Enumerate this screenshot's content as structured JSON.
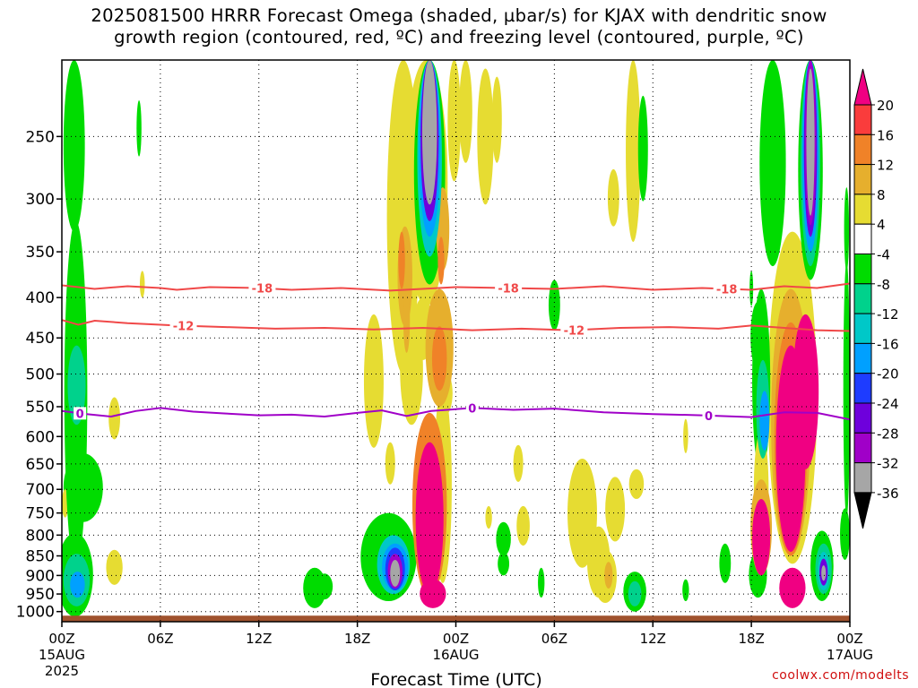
{
  "header": {
    "title_line1": "2025081500 HRRR Forecast Omega (shaded, µbar/s) for KJAX with dendritic snow",
    "title_line2": "growth region (contoured, red, ºC) and freezing level (contoured, purple, ºC)"
  },
  "credit": "coolwx.com/modelts",
  "chart_data": {
    "type": "heatmap",
    "title": "2025081500 HRRR Forecast Omega (shaded, µbar/s) for KJAX with dendritic snow growth region (contoured, red, ºC) and freezing level (contoured, purple, ºC)",
    "xlabel": "Forecast Time (UTC)",
    "ylabel": "",
    "x_range_hours": [
      0,
      48
    ],
    "y_range_hpa": [
      1030,
      200
    ],
    "y_scale": "log",
    "grid": true,
    "x_ticks": [
      {
        "h": 0,
        "label": "00Z",
        "sub1": "15AUG",
        "sub2": "2025"
      },
      {
        "h": 6,
        "label": "06Z",
        "sub1": "",
        "sub2": ""
      },
      {
        "h": 12,
        "label": "12Z",
        "sub1": "",
        "sub2": ""
      },
      {
        "h": 18,
        "label": "18Z",
        "sub1": "",
        "sub2": ""
      },
      {
        "h": 24,
        "label": "00Z",
        "sub1": "16AUG",
        "sub2": ""
      },
      {
        "h": 30,
        "label": "06Z",
        "sub1": "",
        "sub2": ""
      },
      {
        "h": 36,
        "label": "12Z",
        "sub1": "",
        "sub2": ""
      },
      {
        "h": 42,
        "label": "18Z",
        "sub1": "",
        "sub2": ""
      },
      {
        "h": 48,
        "label": "00Z",
        "sub1": "17AUG",
        "sub2": ""
      }
    ],
    "y_ticks": [
      250,
      300,
      350,
      400,
      450,
      500,
      550,
      600,
      650,
      700,
      750,
      800,
      850,
      900,
      950,
      1000
    ],
    "colorbar": {
      "levels": [
        -36,
        -32,
        -28,
        -24,
        -20,
        -16,
        -12,
        -8,
        -4,
        4,
        8,
        12,
        16,
        20
      ],
      "labels": [
        "20",
        "16",
        "12",
        "8",
        "4",
        "-4",
        "-8",
        "-12",
        "-16",
        "-20",
        "-24",
        "-28",
        "-32",
        "-36"
      ],
      "colors": [
        "#000000",
        "#a6a6a6",
        "#a000c8",
        "#6e00dc",
        "#1e3cff",
        "#00a0ff",
        "#00c8c8",
        "#00d28c",
        "#00dc00",
        "#ffffff",
        "#e6dc32",
        "#e6af2d",
        "#f08228",
        "#fa3c3c",
        "#f00082"
      ]
    },
    "contours": [
      {
        "label": "-18",
        "color": "#f04848",
        "label_hours": [
          12.2,
          27.2,
          40.5
        ],
        "points": [
          [
            0,
            386
          ],
          [
            1,
            388
          ],
          [
            2,
            390
          ],
          [
            4,
            387
          ],
          [
            6,
            389
          ],
          [
            7,
            391
          ],
          [
            9,
            388
          ],
          [
            12,
            389
          ],
          [
            14,
            391
          ],
          [
            17,
            389
          ],
          [
            20,
            392
          ],
          [
            24,
            388
          ],
          [
            27,
            389
          ],
          [
            30,
            390
          ],
          [
            33,
            387
          ],
          [
            36,
            391
          ],
          [
            39,
            389
          ],
          [
            42,
            391
          ],
          [
            44,
            387
          ],
          [
            46,
            389
          ],
          [
            48,
            384
          ]
        ]
      },
      {
        "label": "-12",
        "color": "#f04848",
        "label_hours": [
          7.4,
          31.2
        ],
        "points": [
          [
            0,
            427
          ],
          [
            1,
            433
          ],
          [
            2,
            428
          ],
          [
            4,
            431
          ],
          [
            7,
            434
          ],
          [
            10,
            436
          ],
          [
            13,
            438
          ],
          [
            16,
            437
          ],
          [
            19,
            439
          ],
          [
            22,
            437
          ],
          [
            25,
            440
          ],
          [
            28,
            438
          ],
          [
            31,
            440
          ],
          [
            34,
            437
          ],
          [
            37,
            436
          ],
          [
            40,
            438
          ],
          [
            42,
            434
          ],
          [
            44,
            437
          ],
          [
            46,
            440
          ],
          [
            48,
            441
          ]
        ]
      },
      {
        "label": "0",
        "color": "#a000c8",
        "label_hours": [
          1.1,
          25.0,
          39.4
        ],
        "points": [
          [
            0,
            557
          ],
          [
            1.5,
            562
          ],
          [
            3,
            566
          ],
          [
            4.5,
            557
          ],
          [
            6,
            552
          ],
          [
            8,
            558
          ],
          [
            10,
            561
          ],
          [
            12,
            564
          ],
          [
            14,
            563
          ],
          [
            16,
            566
          ],
          [
            18,
            560
          ],
          [
            19.5,
            556
          ],
          [
            21,
            565
          ],
          [
            22.5,
            557
          ],
          [
            25,
            552
          ],
          [
            27.5,
            555
          ],
          [
            30,
            553
          ],
          [
            33,
            559
          ],
          [
            36,
            562
          ],
          [
            39,
            564
          ],
          [
            42,
            567
          ],
          [
            44,
            559
          ],
          [
            46,
            560
          ],
          [
            48,
            571
          ]
        ]
      }
    ],
    "ground_bar": {
      "from_hpa": 1030,
      "to_hpa": 1012,
      "color": "#a0522d"
    },
    "omega_cells": [
      {
        "t": 0.85,
        "p": 600,
        "rt": 0.7,
        "rp": 280,
        "v": -6
      },
      {
        "t": 0.75,
        "p": 260,
        "rt": 0.65,
        "rp": 70,
        "v": -5
      },
      {
        "t": 1.0,
        "p": 640,
        "rt": 1.05,
        "rp": 130,
        "v": -4
      },
      {
        "t": 1.3,
        "p": 700,
        "rt": 1.2,
        "rp": 70,
        "v": -5
      },
      {
        "t": 0.9,
        "p": 520,
        "rt": 0.55,
        "rp": 60,
        "v": -11
      },
      {
        "t": 0.8,
        "p": 905,
        "rt": 1.1,
        "rp": 110,
        "v": -5
      },
      {
        "t": 0.9,
        "p": 915,
        "rt": 0.8,
        "rp": 70,
        "v": -10
      },
      {
        "t": 0.95,
        "p": 925,
        "rt": 0.45,
        "rp": 35,
        "v": -17
      },
      {
        "t": 0.2,
        "p": 730,
        "rt": 0.2,
        "rp": 30,
        "v": 5
      },
      {
        "t": 3.2,
        "p": 570,
        "rt": 0.35,
        "rp": 35,
        "v": 5
      },
      {
        "t": 3.2,
        "p": 880,
        "rt": 0.5,
        "rp": 45,
        "v": 5
      },
      {
        "t": 4.7,
        "p": 245,
        "rt": 0.15,
        "rp": 20,
        "v": -6
      },
      {
        "t": 4.9,
        "p": 385,
        "rt": 0.15,
        "rp": 15,
        "v": 5
      },
      {
        "t": 15.4,
        "p": 935,
        "rt": 0.7,
        "rp": 55,
        "v": -5
      },
      {
        "t": 16.0,
        "p": 930,
        "rt": 0.5,
        "rp": 35,
        "v": -8
      },
      {
        "t": 19.9,
        "p": 860,
        "rt": 1.7,
        "rp": 110,
        "v": -5
      },
      {
        "t": 20.1,
        "p": 870,
        "rt": 1.3,
        "rp": 90,
        "v": -8
      },
      {
        "t": 20.2,
        "p": 875,
        "rt": 1.0,
        "rp": 75,
        "v": -13
      },
      {
        "t": 20.3,
        "p": 880,
        "rt": 0.8,
        "rp": 60,
        "v": -18
      },
      {
        "t": 20.3,
        "p": 885,
        "rt": 0.6,
        "rp": 55,
        "v": -22
      },
      {
        "t": 20.3,
        "p": 890,
        "rt": 0.45,
        "rp": 45,
        "v": -29
      },
      {
        "t": 20.3,
        "p": 895,
        "rt": 0.3,
        "rp": 35,
        "v": -36
      },
      {
        "t": 19.0,
        "p": 520,
        "rt": 0.6,
        "rp": 100,
        "v": 5
      },
      {
        "t": 20.8,
        "p": 350,
        "rt": 1.0,
        "rp": 150,
        "v": 6
      },
      {
        "t": 20.9,
        "p": 380,
        "rt": 0.45,
        "rp": 55,
        "v": 10
      },
      {
        "t": 20.7,
        "p": 360,
        "rt": 0.2,
        "rp": 30,
        "v": 14
      },
      {
        "t": 21.0,
        "p": 430,
        "rt": 0.2,
        "rp": 40,
        "v": 10
      },
      {
        "t": 22.0,
        "p": 440,
        "rt": 0.6,
        "rp": 40,
        "v": 5
      },
      {
        "t": 20.0,
        "p": 650,
        "rt": 0.3,
        "rp": 40,
        "v": 5
      },
      {
        "t": 21.3,
        "p": 500,
        "rt": 0.7,
        "rp": 80,
        "v": 5
      },
      {
        "t": 22.4,
        "p": 760,
        "rt": 1.05,
        "rp": 200,
        "v": 12
      },
      {
        "t": 22.4,
        "p": 780,
        "rt": 0.85,
        "rp": 170,
        "v": 20
      },
      {
        "t": 22.3,
        "p": 620,
        "rt": 0.45,
        "rp": 55,
        "v": 14
      },
      {
        "t": 22.6,
        "p": 950,
        "rt": 0.8,
        "rp": 40,
        "v": 20
      },
      {
        "t": 23.2,
        "p": 720,
        "rt": 0.55,
        "rp": 200,
        "v": 5
      },
      {
        "t": 23.0,
        "p": 470,
        "rt": 0.85,
        "rp": 80,
        "v": 9
      },
      {
        "t": 23.0,
        "p": 480,
        "rt": 0.45,
        "rp": 45,
        "v": 13
      },
      {
        "t": 23.3,
        "p": 530,
        "rt": 0.5,
        "rp": 35,
        "v": 5
      },
      {
        "t": 22.2,
        "p": 300,
        "rt": 1.3,
        "rp": 110,
        "v": 5
      },
      {
        "t": 23.2,
        "p": 330,
        "rt": 0.4,
        "rp": 40,
        "v": 9
      },
      {
        "t": 23.1,
        "p": 360,
        "rt": 0.2,
        "rp": 25,
        "v": 13
      },
      {
        "t": 22.4,
        "p": 275,
        "rt": 0.95,
        "rp": 110,
        "v": -6
      },
      {
        "t": 22.4,
        "p": 260,
        "rt": 0.75,
        "rp": 95,
        "v": -13
      },
      {
        "t": 22.4,
        "p": 250,
        "rt": 0.65,
        "rp": 85,
        "v": -20
      },
      {
        "t": 22.4,
        "p": 240,
        "rt": 0.55,
        "rp": 80,
        "v": -27
      },
      {
        "t": 22.4,
        "p": 230,
        "rt": 0.45,
        "rp": 75,
        "v": -36
      },
      {
        "t": 23.9,
        "p": 240,
        "rt": 0.4,
        "rp": 45,
        "v": 5
      },
      {
        "t": 24.6,
        "p": 230,
        "rt": 0.4,
        "rp": 40,
        "v": 5
      },
      {
        "t": 25.8,
        "p": 255,
        "rt": 0.5,
        "rp": 50,
        "v": 5
      },
      {
        "t": 26.5,
        "p": 240,
        "rt": 0.3,
        "rp": 30,
        "v": 5
      },
      {
        "t": 26.0,
        "p": 760,
        "rt": 0.2,
        "rp": 25,
        "v": 5
      },
      {
        "t": 26.9,
        "p": 810,
        "rt": 0.45,
        "rp": 40,
        "v": -5
      },
      {
        "t": 26.9,
        "p": 870,
        "rt": 0.35,
        "rp": 30,
        "v": -6
      },
      {
        "t": 27.8,
        "p": 650,
        "rt": 0.3,
        "rp": 35,
        "v": 5
      },
      {
        "t": 28.1,
        "p": 780,
        "rt": 0.4,
        "rp": 45,
        "v": 5
      },
      {
        "t": 29.2,
        "p": 920,
        "rt": 0.2,
        "rp": 40,
        "v": -6
      },
      {
        "t": 30.0,
        "p": 410,
        "rt": 0.35,
        "rp": 30,
        "v": -5
      },
      {
        "t": 31.7,
        "p": 760,
        "rt": 0.9,
        "rp": 120,
        "v": 5
      },
      {
        "t": 32.7,
        "p": 870,
        "rt": 0.7,
        "rp": 90,
        "v": 5
      },
      {
        "t": 33.7,
        "p": 745,
        "rt": 0.6,
        "rp": 70,
        "v": 5
      },
      {
        "t": 33.1,
        "p": 905,
        "rt": 0.7,
        "rp": 70,
        "v": 6
      },
      {
        "t": 33.3,
        "p": 900,
        "rt": 0.25,
        "rp": 35,
        "v": 9
      },
      {
        "t": 34.9,
        "p": 945,
        "rt": 0.7,
        "rp": 55,
        "v": -5
      },
      {
        "t": 34.9,
        "p": 950,
        "rt": 0.4,
        "rp": 35,
        "v": -9
      },
      {
        "t": 35.0,
        "p": 690,
        "rt": 0.45,
        "rp": 30,
        "v": 5
      },
      {
        "t": 33.6,
        "p": 300,
        "rt": 0.35,
        "rp": 25,
        "v": 5
      },
      {
        "t": 34.8,
        "p": 270,
        "rt": 0.45,
        "rp": 70,
        "v": 5
      },
      {
        "t": 35.4,
        "p": 262,
        "rt": 0.3,
        "rp": 40,
        "v": -6
      },
      {
        "t": 38.0,
        "p": 600,
        "rt": 0.15,
        "rp": 30,
        "v": 5
      },
      {
        "t": 38.0,
        "p": 940,
        "rt": 0.2,
        "rp": 30,
        "v": -6
      },
      {
        "t": 40.4,
        "p": 870,
        "rt": 0.35,
        "rp": 50,
        "v": -5
      },
      {
        "t": 42.0,
        "p": 390,
        "rt": 0.1,
        "rp": 20,
        "v": -6
      },
      {
        "t": 42.4,
        "p": 450,
        "rt": 0.45,
        "rp": 45,
        "v": -6
      },
      {
        "t": 42.6,
        "p": 530,
        "rt": 0.55,
        "rp": 140,
        "v": -6
      },
      {
        "t": 42.7,
        "p": 560,
        "rt": 0.4,
        "rp": 80,
        "v": -12
      },
      {
        "t": 42.8,
        "p": 575,
        "rt": 0.3,
        "rp": 50,
        "v": -17
      },
      {
        "t": 42.6,
        "p": 710,
        "rt": 0.45,
        "rp": 120,
        "v": 6
      },
      {
        "t": 42.6,
        "p": 790,
        "rt": 0.65,
        "rp": 110,
        "v": 10
      },
      {
        "t": 42.6,
        "p": 810,
        "rt": 0.55,
        "rp": 90,
        "v": 20
      },
      {
        "t": 42.4,
        "p": 900,
        "rt": 0.55,
        "rp": 60,
        "v": -5
      },
      {
        "t": 43.3,
        "p": 275,
        "rt": 0.8,
        "rp": 90,
        "v": -5
      },
      {
        "t": 44.5,
        "p": 600,
        "rt": 1.5,
        "rp": 270,
        "v": 5
      },
      {
        "t": 44.4,
        "p": 620,
        "rt": 1.2,
        "rp": 230,
        "v": 9
      },
      {
        "t": 44.4,
        "p": 640,
        "rt": 1.0,
        "rp": 210,
        "v": 13
      },
      {
        "t": 44.4,
        "p": 650,
        "rt": 0.9,
        "rp": 190,
        "v": 20
      },
      {
        "t": 44.5,
        "p": 935,
        "rt": 0.8,
        "rp": 55,
        "v": 20
      },
      {
        "t": 45.3,
        "p": 540,
        "rt": 0.8,
        "rp": 120,
        "v": 20
      },
      {
        "t": 45.6,
        "p": 280,
        "rt": 0.75,
        "rp": 100,
        "v": -6
      },
      {
        "t": 45.6,
        "p": 275,
        "rt": 0.6,
        "rp": 90,
        "v": -12
      },
      {
        "t": 45.6,
        "p": 270,
        "rt": 0.5,
        "rp": 80,
        "v": -18
      },
      {
        "t": 45.6,
        "p": 265,
        "rt": 0.4,
        "rp": 70,
        "v": -26
      },
      {
        "t": 45.6,
        "p": 262,
        "rt": 0.33,
        "rp": 62,
        "v": -32
      },
      {
        "t": 45.6,
        "p": 260,
        "rt": 0.25,
        "rp": 55,
        "v": -36
      },
      {
        "t": 46.3,
        "p": 880,
        "rt": 0.7,
        "rp": 90,
        "v": -5
      },
      {
        "t": 46.4,
        "p": 885,
        "rt": 0.5,
        "rp": 65,
        "v": -10
      },
      {
        "t": 46.4,
        "p": 890,
        "rt": 0.35,
        "rp": 50,
        "v": -16
      },
      {
        "t": 46.4,
        "p": 892,
        "rt": 0.25,
        "rp": 35,
        "v": -28
      },
      {
        "t": 46.4,
        "p": 894,
        "rt": 0.14,
        "rp": 20,
        "v": -36
      },
      {
        "t": 47.8,
        "p": 560,
        "rt": 0.2,
        "rp": 200,
        "v": -6
      },
      {
        "t": 47.7,
        "p": 800,
        "rt": 0.3,
        "rp": 60,
        "v": -6
      },
      {
        "t": 47.8,
        "p": 330,
        "rt": 0.15,
        "rp": 40,
        "v": -6
      },
      {
        "t": 47.8,
        "p": 600,
        "rt": 0.15,
        "rp": 60,
        "v": 5
      }
    ]
  }
}
